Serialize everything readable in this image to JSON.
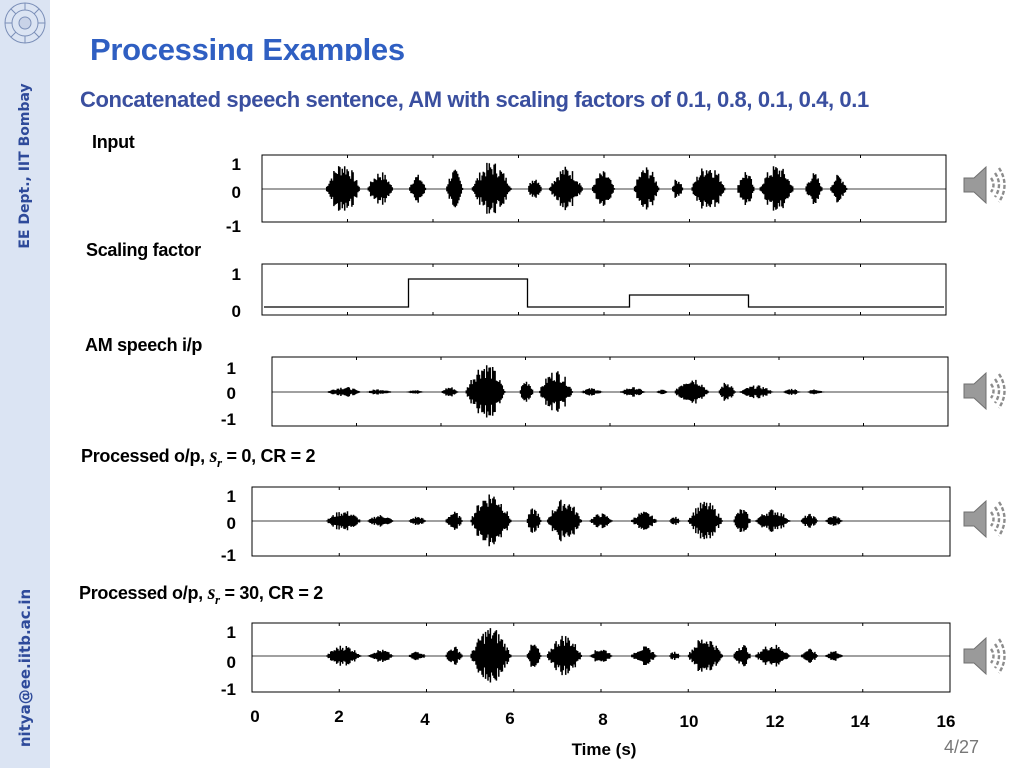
{
  "sidebar": {
    "department": "EE Dept., IIT Bombay",
    "email": "nitya@ee.iitb.ac.in"
  },
  "title": "Processing Examples",
  "subtitle": "Concatenated speech sentence, AM with scaling factors of 0.1, 0.8, 0.1, 0.4, 0.1",
  "labels": {
    "input": "Input",
    "scaling": "Scaling factor",
    "am": "AM speech i/p",
    "proc0_pre": "Processed o/p, ",
    "proc0_post": " = 0, CR = 2",
    "proc30_pre": "Processed o/p, ",
    "proc30_post": " = 30, CR = 2",
    "sr_symbol": "s",
    "sr_sub": "r"
  },
  "chart_data": [
    {
      "type": "line",
      "name": "Input",
      "ylim": [
        -1,
        1
      ],
      "yticks": [
        "1",
        "0",
        "-1"
      ]
    },
    {
      "type": "line",
      "name": "Scaling factor",
      "ylim": [
        0,
        1
      ],
      "yticks": [
        "1",
        "0"
      ],
      "x": [
        0,
        3.4,
        3.4,
        6.2,
        6.2,
        8.6,
        8.6,
        11.4,
        11.4,
        16
      ],
      "values": [
        0.1,
        0.1,
        0.8,
        0.8,
        0.1,
        0.1,
        0.4,
        0.4,
        0.1,
        0.1
      ]
    },
    {
      "type": "line",
      "name": "AM speech i/p",
      "ylim": [
        -1,
        1
      ],
      "yticks": [
        "1",
        "0",
        "-1"
      ]
    },
    {
      "type": "line",
      "name": "Processed o/p, s_r = 0, CR = 2",
      "ylim": [
        -1,
        1
      ],
      "yticks": [
        "1",
        "0",
        "-1"
      ]
    },
    {
      "type": "line",
      "name": "Processed o/p, s_r = 30, CR = 2",
      "ylim": [
        -1,
        1
      ],
      "yticks": [
        "1",
        "0",
        "-1"
      ],
      "xlabel": "Time (s)",
      "xticks": [
        "0",
        "2",
        "4",
        "6",
        "8",
        "10",
        "12",
        "14",
        "16"
      ]
    }
  ],
  "page_number": "4/27",
  "colors": {
    "title": "#2f5fc2",
    "subtitle": "#3a4f9f",
    "sidebar": "#dbe4f3",
    "speaker": "#9a9a9a"
  },
  "icons": [
    "institute-logo",
    "speaker-icon"
  ]
}
